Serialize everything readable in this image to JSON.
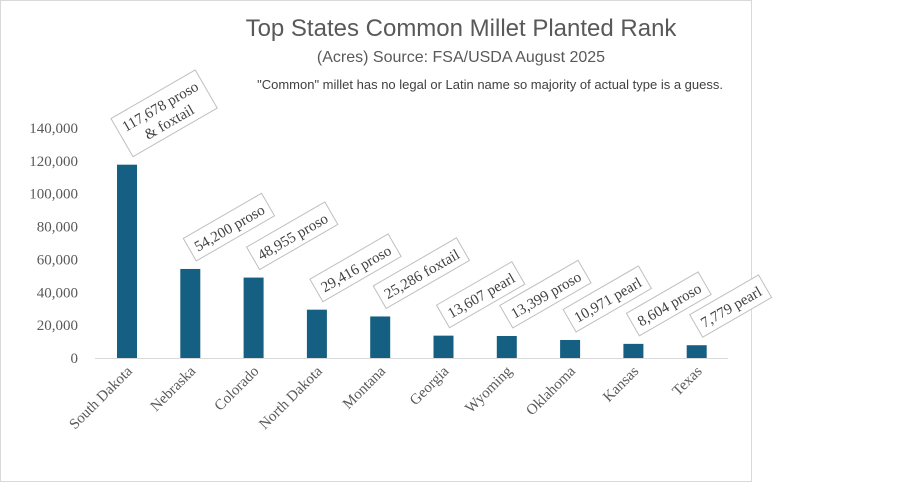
{
  "chart_data": {
    "type": "bar",
    "title": "Top States Common Millet Planted Rank",
    "subtitle": "(Acres) Source: FSA/USDA August 2025",
    "note": "\"Common\" millet has no legal or Latin name so majority of actual type is a guess.",
    "categories": [
      "South Dakota",
      "Nebraska",
      "Colorado",
      "North Dakota",
      "Montana",
      "Georgia",
      "Wyoming",
      "Oklahoma",
      "Kansas",
      "Texas"
    ],
    "values": [
      117678,
      54200,
      48955,
      29416,
      25286,
      13607,
      13399,
      10971,
      8604,
      7779
    ],
    "data_labels": [
      [
        "117,678 proso",
        "& foxtail"
      ],
      [
        "54,200 proso"
      ],
      [
        "48,955 proso"
      ],
      [
        "29,416 proso"
      ],
      [
        "25,286 foxtail"
      ],
      [
        "13,607 pearl"
      ],
      [
        "13,399 proso"
      ],
      [
        "10,971 pearl"
      ],
      [
        "8,604 proso"
      ],
      [
        "7,779 pearl"
      ]
    ],
    "yticks": [
      "0",
      "20,000",
      "40,000",
      "60,000",
      "80,000",
      "100,000",
      "120,000",
      "140,000"
    ],
    "ylim": [
      0,
      140000
    ],
    "grid": false,
    "bar_color": "#156082"
  }
}
